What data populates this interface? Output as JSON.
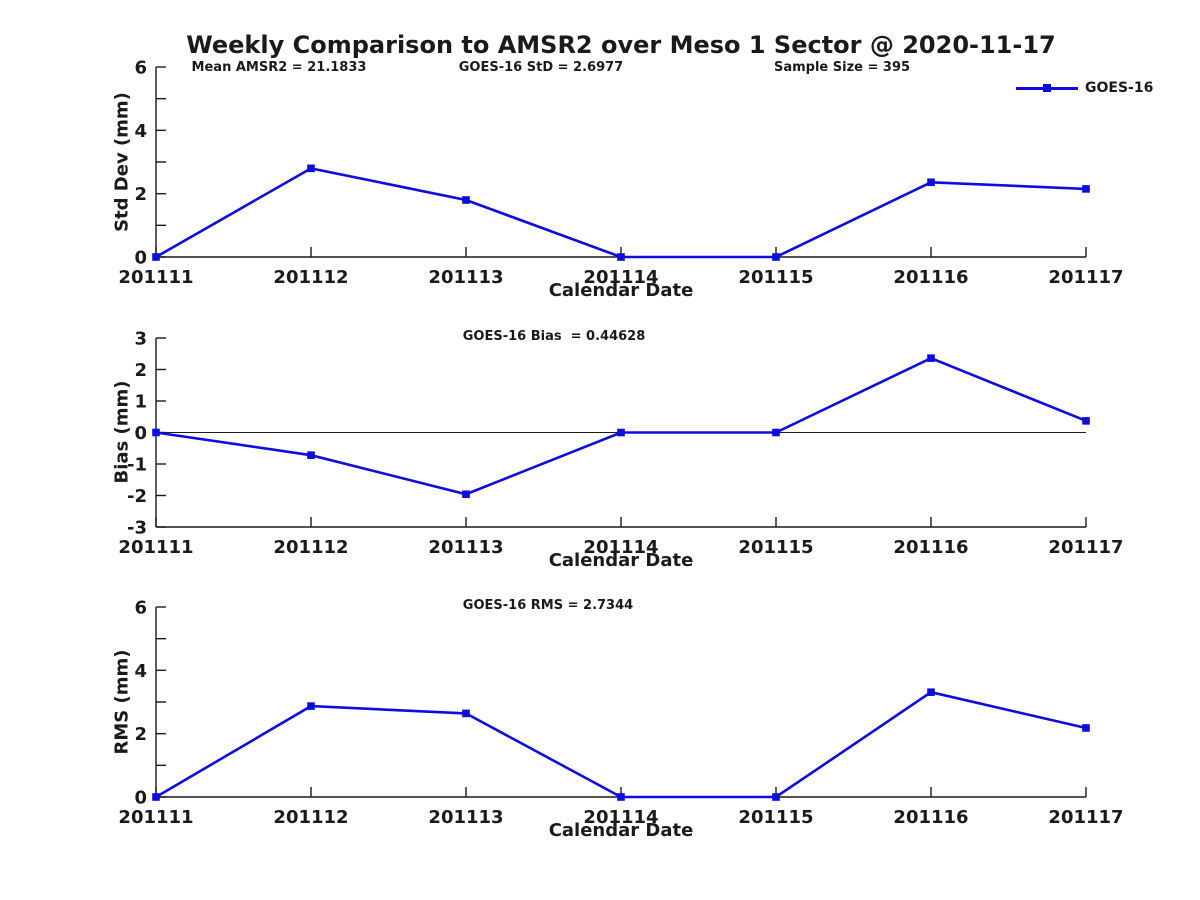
{
  "title": "Weekly Comparison to AMSR2 over Meso 1 Sector @ 2020-11-17",
  "legend": {
    "label": "GOES-16",
    "color": "#0d0ddc"
  },
  "annotations": [
    {
      "text": "Mean AMSR2 = 21.1833"
    },
    {
      "text": "GOES-16 StD = 2.6977"
    },
    {
      "text": "Sample Size = 395"
    },
    {
      "text": "GOES-16 Bias  = 0.44628"
    },
    {
      "text": "GOES-16 RMS = 2.7344"
    }
  ],
  "chart_data": [
    {
      "type": "line",
      "ylabel": "Std Dev (mm)",
      "xlabel": "Calendar Date",
      "categories": [
        "201111",
        "201112",
        "201113",
        "201114",
        "201115",
        "201116",
        "201117"
      ],
      "series": [
        {
          "name": "GOES-16",
          "color": "#0d0ddc",
          "marker": "square",
          "values": [
            0,
            2.8,
            1.8,
            0,
            0,
            2.36,
            2.15
          ]
        }
      ],
      "ylim": [
        0,
        6
      ],
      "yticks_labeled": [
        0,
        2,
        4,
        6
      ],
      "yticks_minor": [
        1,
        3,
        5
      ],
      "zero_line": false,
      "grid": false,
      "legend_position": "top-right"
    },
    {
      "type": "line",
      "ylabel": "Bias (mm)",
      "xlabel": "Calendar Date",
      "categories": [
        "201111",
        "201112",
        "201113",
        "201114",
        "201115",
        "201116",
        "201117"
      ],
      "series": [
        {
          "name": "GOES-16",
          "color": "#0d0ddc",
          "marker": "square",
          "values": [
            0,
            -0.72,
            -1.96,
            0,
            0,
            2.36,
            0.37
          ]
        }
      ],
      "ylim": [
        -3,
        3
      ],
      "yticks_labeled": [
        -3,
        -2,
        -1,
        0,
        1,
        2,
        3
      ],
      "yticks_minor": [],
      "zero_line": true,
      "grid": false
    },
    {
      "type": "line",
      "ylabel": "RMS (mm)",
      "xlabel": "Calendar Date",
      "categories": [
        "201111",
        "201112",
        "201113",
        "201114",
        "201115",
        "201116",
        "201117"
      ],
      "series": [
        {
          "name": "GOES-16",
          "color": "#0d0ddc",
          "marker": "square",
          "values": [
            0,
            2.87,
            2.64,
            0,
            0,
            3.31,
            2.18
          ]
        }
      ],
      "ylim": [
        0,
        6
      ],
      "yticks_labeled": [
        0,
        2,
        4,
        6
      ],
      "yticks_minor": [
        1,
        3,
        5
      ],
      "zero_line": false,
      "grid": false
    }
  ]
}
